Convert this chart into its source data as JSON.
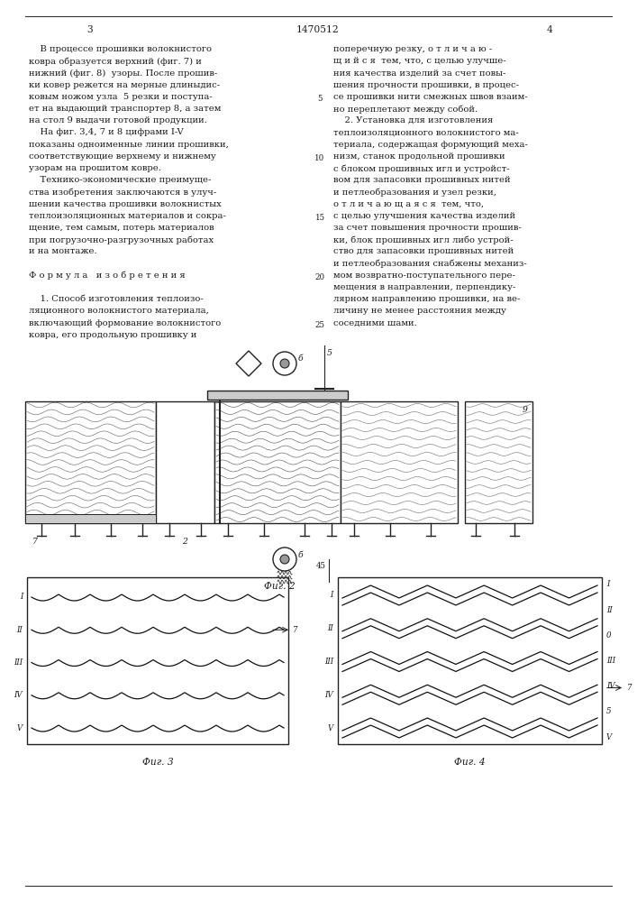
{
  "bg_color": "#ffffff",
  "page_color": "#ffffff",
  "text_color": "#1a1a1a",
  "title_text": "1470512",
  "page_num_left": "3",
  "page_num_right": "4",
  "left_column_text": [
    "    В процессе прошивки волокнистого",
    "ковра образуется верхний (фиг. 7) и",
    "нижний (фиг. 8)  узоры. После прошив-",
    "ки ковер режется на мерные длиныдис-",
    "ковым ножом узла  5 резки и поступа-",
    "ет на выдающий транспортер 8, а затем",
    "на стол 9 выдачи готовой продукции.",
    "    На фиг. 3,4, 7 и 8 цифрами I-V",
    "показаны одноименные линии прошивки,",
    "соответствующие верхнему и нижнему",
    "узорам на прошитом ковре.",
    "    Технико-экономические преимуще-",
    "ства изобретения заключаются в улуч-",
    "шении качества прошивки волокнистых",
    "теплоизоляционных материалов и сокра-",
    "щение, тем самым, потерь материалов",
    "при погрузочно-разгрузочных работах",
    "и на монтаже.",
    "",
    "Ф о р м у л а   и з о б р е т е н и я",
    "",
    "    1. Способ изготовления теплоизо-",
    "ляционного волокнистого материала,",
    "включающий формование волокнистого",
    "ковра, его продольную прошивку и"
  ],
  "right_column_text": [
    "поперечную резку, о т л и ч а ю -",
    "щ и й с я  тем, что, с целью улучше-",
    "ния качества изделий за счет повы-",
    "шения прочности прошивки, в процес-",
    "се прошивки нити смежных швов взаим-",
    "но переплетают между собой.",
    "    2. Установка для изготовления",
    "теплоизоляционного волокнистого ма-",
    "териала, содержащая формующий меха-",
    "низм, станок продольной прошивки",
    "с блоком прошивных игл и устройст-",
    "вом для запасовки прошивных нитей",
    "и петлеобразования и узел резки,",
    "о т л и ч а ю щ а я с я  тем, что,",
    "с целью улучшения качества изделий",
    "за счет повышения прочности прошив-",
    "ки, блок прошивных игл либо устрой-",
    "ство для запасовки прошивных нитей",
    "и петлеобразования снабжены механиз-",
    "мом возвратно-поступательного пере-",
    "мещения в направлении, перпендику-",
    "лярном направлению прошивки, на ве-",
    "личину не менее расстояния между",
    "соседними шами."
  ],
  "fig2_caption": "Фиг. 2",
  "fig3_caption": "Фиг. 3",
  "fig4_caption": "Фиг. 4"
}
